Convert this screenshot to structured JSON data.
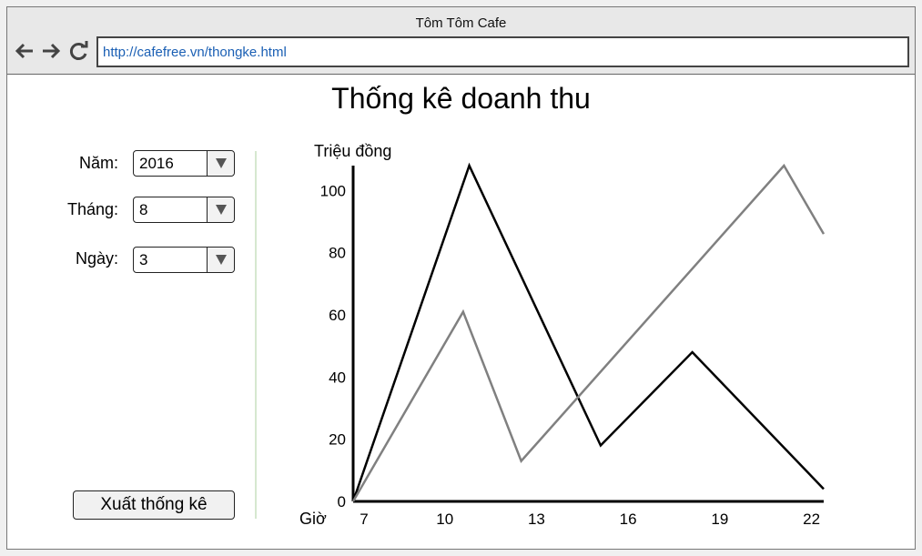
{
  "window": {
    "title": "Tôm Tôm Cafe"
  },
  "browser": {
    "url": "http://cafefree.vn/thongke.html"
  },
  "page": {
    "title": "Thống kê doanh thu"
  },
  "filters": {
    "year": {
      "label": "Năm:",
      "value": "2016"
    },
    "month": {
      "label": "Tháng:",
      "value": "8"
    },
    "day": {
      "label": "Ngày:",
      "value": "3"
    }
  },
  "actions": {
    "export_label": "Xuất thống kê"
  },
  "chart_data": {
    "type": "line",
    "ylabel": "Triệu đồng",
    "xlabel": "Giờ",
    "xlim": [
      7,
      22.4
    ],
    "ylim": [
      0,
      108
    ],
    "xticks": [
      7,
      10,
      13,
      16,
      19,
      22
    ],
    "yticks": [
      0,
      20,
      40,
      60,
      80,
      100
    ],
    "series": [
      {
        "values": [
          [
            7,
            0
          ],
          [
            10.8,
            108
          ],
          [
            15.1,
            18
          ],
          [
            18.1,
            48
          ],
          [
            22.4,
            4
          ]
        ],
        "color": "#000000"
      },
      {
        "values": [
          [
            7,
            0
          ],
          [
            10.6,
            61
          ],
          [
            12.5,
            13
          ],
          [
            21.1,
            108
          ],
          [
            22.4,
            86
          ]
        ],
        "color": "#808080"
      }
    ]
  }
}
